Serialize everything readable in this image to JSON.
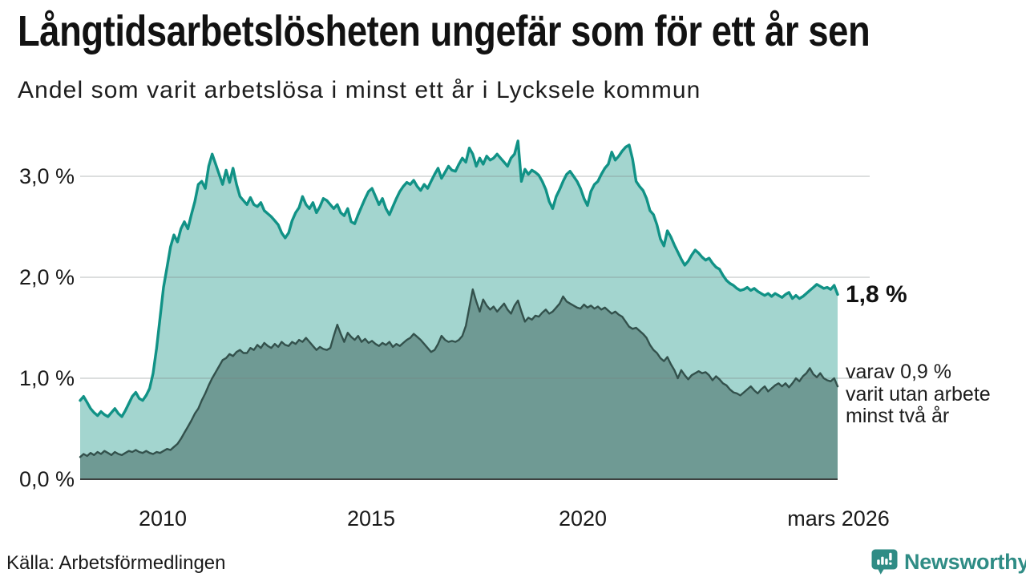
{
  "header": {
    "title": "Långtidsarbetslösheten ungefär som för ett år sen",
    "subtitle": "Andel som varit arbetslösa i minst ett år i Lycksele kommun"
  },
  "chart_data": {
    "type": "area",
    "title": "Långtidsarbetslösheten ungefär som för ett år sen",
    "subtitle": "Andel som varit arbetslösa i minst ett år i Lycksele kommun",
    "unit": "%",
    "frequency": "monthly",
    "x_start": "2008-01",
    "x_end": "2026-03",
    "ylim": [
      0,
      3.35
    ],
    "grid": "horizontal",
    "y_gridline_values": [
      3.0,
      2.0,
      1.0
    ],
    "y_tick_labels": [
      "3,0 %",
      "2,0 %",
      "1,0 %",
      "0,0 %"
    ],
    "y_tick_values": [
      3.0,
      2.0,
      1.0,
      0.0
    ],
    "x_tick_labels": [
      "2010",
      "2015",
      "2020",
      "mars 2026"
    ],
    "x_tick_years": [
      2010,
      2015,
      2020,
      2026.17
    ],
    "series": [
      {
        "name": "Andel arbetslösa minst ett år",
        "line_color": "#119286",
        "fill_color": "#a3d5cf",
        "line_width": 3.4,
        "values": [
          0.78,
          0.82,
          0.76,
          0.7,
          0.66,
          0.63,
          0.67,
          0.64,
          0.62,
          0.66,
          0.7,
          0.65,
          0.62,
          0.68,
          0.75,
          0.82,
          0.86,
          0.8,
          0.78,
          0.83,
          0.9,
          1.05,
          1.3,
          1.6,
          1.9,
          2.1,
          2.3,
          2.42,
          2.35,
          2.48,
          2.55,
          2.48,
          2.62,
          2.75,
          2.92,
          2.95,
          2.88,
          3.1,
          3.22,
          3.12,
          3.02,
          2.92,
          3.06,
          2.94,
          3.08,
          2.92,
          2.8,
          2.76,
          2.72,
          2.79,
          2.72,
          2.7,
          2.74,
          2.66,
          2.63,
          2.6,
          2.56,
          2.52,
          2.44,
          2.39,
          2.44,
          2.56,
          2.64,
          2.69,
          2.8,
          2.72,
          2.68,
          2.74,
          2.64,
          2.7,
          2.78,
          2.76,
          2.72,
          2.68,
          2.72,
          2.64,
          2.61,
          2.68,
          2.55,
          2.53,
          2.62,
          2.7,
          2.78,
          2.85,
          2.88,
          2.8,
          2.72,
          2.78,
          2.68,
          2.62,
          2.7,
          2.78,
          2.85,
          2.9,
          2.94,
          2.92,
          2.96,
          2.9,
          2.86,
          2.92,
          2.88,
          2.95,
          3.02,
          3.08,
          2.98,
          3.04,
          3.1,
          3.06,
          3.05,
          3.12,
          3.18,
          3.14,
          3.28,
          3.22,
          3.1,
          3.18,
          3.12,
          3.2,
          3.16,
          3.18,
          3.22,
          3.18,
          3.14,
          3.1,
          3.18,
          3.22,
          3.35,
          2.95,
          3.07,
          3.02,
          3.06,
          3.04,
          3.01,
          2.95,
          2.87,
          2.75,
          2.68,
          2.8,
          2.87,
          2.95,
          3.02,
          3.05,
          3.0,
          2.95,
          2.88,
          2.78,
          2.71,
          2.85,
          2.92,
          2.95,
          3.02,
          3.08,
          3.12,
          3.24,
          3.16,
          3.2,
          3.25,
          3.29,
          3.31,
          3.17,
          2.95,
          2.9,
          2.86,
          2.78,
          2.66,
          2.62,
          2.52,
          2.38,
          2.31,
          2.46,
          2.4,
          2.32,
          2.25,
          2.18,
          2.12,
          2.16,
          2.22,
          2.27,
          2.24,
          2.2,
          2.17,
          2.19,
          2.14,
          2.1,
          2.08,
          2.02,
          1.97,
          1.94,
          1.92,
          1.89,
          1.87,
          1.88,
          1.9,
          1.87,
          1.89,
          1.86,
          1.84,
          1.82,
          1.84,
          1.81,
          1.84,
          1.82,
          1.8,
          1.83,
          1.85,
          1.79,
          1.82,
          1.79,
          1.81,
          1.84,
          1.87,
          1.9,
          1.93,
          1.91,
          1.89,
          1.9,
          1.88,
          1.92,
          1.83
        ]
      },
      {
        "name": "varav varit utan arbete minst två år",
        "line_color": "#33514c",
        "fill_color": "#6f9a94",
        "line_width": 2.4,
        "values": [
          0.22,
          0.25,
          0.23,
          0.26,
          0.24,
          0.27,
          0.25,
          0.28,
          0.26,
          0.24,
          0.27,
          0.25,
          0.24,
          0.26,
          0.28,
          0.27,
          0.29,
          0.27,
          0.26,
          0.28,
          0.26,
          0.25,
          0.27,
          0.26,
          0.28,
          0.3,
          0.29,
          0.32,
          0.35,
          0.4,
          0.46,
          0.52,
          0.58,
          0.65,
          0.7,
          0.78,
          0.85,
          0.93,
          1.0,
          1.06,
          1.12,
          1.18,
          1.2,
          1.24,
          1.22,
          1.26,
          1.28,
          1.25,
          1.25,
          1.3,
          1.28,
          1.33,
          1.3,
          1.35,
          1.32,
          1.3,
          1.34,
          1.31,
          1.36,
          1.33,
          1.32,
          1.36,
          1.34,
          1.38,
          1.36,
          1.4,
          1.36,
          1.32,
          1.28,
          1.31,
          1.29,
          1.28,
          1.3,
          1.42,
          1.53,
          1.44,
          1.36,
          1.45,
          1.41,
          1.38,
          1.42,
          1.36,
          1.39,
          1.35,
          1.37,
          1.34,
          1.32,
          1.35,
          1.33,
          1.36,
          1.31,
          1.34,
          1.32,
          1.35,
          1.38,
          1.4,
          1.44,
          1.41,
          1.38,
          1.34,
          1.3,
          1.26,
          1.28,
          1.34,
          1.42,
          1.38,
          1.36,
          1.37,
          1.36,
          1.38,
          1.42,
          1.52,
          1.7,
          1.88,
          1.76,
          1.66,
          1.78,
          1.72,
          1.68,
          1.71,
          1.66,
          1.7,
          1.74,
          1.68,
          1.64,
          1.72,
          1.77,
          1.66,
          1.56,
          1.6,
          1.58,
          1.62,
          1.61,
          1.65,
          1.68,
          1.64,
          1.66,
          1.7,
          1.74,
          1.81,
          1.76,
          1.74,
          1.72,
          1.7,
          1.69,
          1.73,
          1.7,
          1.72,
          1.69,
          1.71,
          1.68,
          1.7,
          1.67,
          1.64,
          1.66,
          1.63,
          1.61,
          1.56,
          1.51,
          1.49,
          1.5,
          1.47,
          1.44,
          1.4,
          1.33,
          1.28,
          1.25,
          1.2,
          1.17,
          1.21,
          1.14,
          1.08,
          1.0,
          1.08,
          1.03,
          0.99,
          1.03,
          1.05,
          1.07,
          1.05,
          1.06,
          1.03,
          0.98,
          1.02,
          0.99,
          0.95,
          0.93,
          0.89,
          0.86,
          0.85,
          0.83,
          0.86,
          0.89,
          0.92,
          0.88,
          0.85,
          0.89,
          0.92,
          0.87,
          0.9,
          0.93,
          0.95,
          0.92,
          0.95,
          0.91,
          0.95,
          1.0,
          0.97,
          1.02,
          1.05,
          1.1,
          1.04,
          1.01,
          1.05,
          1.0,
          0.98,
          0.97,
          1.0,
          0.92
        ]
      }
    ],
    "end_labels": {
      "primary": "1,8 %",
      "secondary_line1": "varav 0,9 %",
      "secondary_line2": "varit utan arbete",
      "secondary_line3": "minst två år"
    },
    "legend_position": "right-annotations"
  },
  "colors": {
    "background": "#ffffff",
    "accent_teal": "#119286",
    "light_fill": "#a3d5cf",
    "dark_fill": "#6f9a94",
    "dark_line": "#33514c",
    "gridline": "rgba(120,128,126,0.35)",
    "baseline": "#3c403f",
    "brand": "#2f8c85"
  },
  "footer": {
    "source": "Källa: Arbetsförmedlingen",
    "brand": "Newsworthy"
  }
}
